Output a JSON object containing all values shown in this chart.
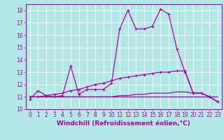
{
  "xlabel": "Windchill (Refroidissement éolien,°C)",
  "background_color": "#b3e8e8",
  "grid_color": "#ffffff",
  "line_color": "#aa00aa",
  "x_values": [
    0,
    1,
    2,
    3,
    4,
    5,
    6,
    7,
    8,
    9,
    10,
    11,
    12,
    13,
    14,
    15,
    16,
    17,
    18,
    19,
    20,
    21,
    22,
    23
  ],
  "series1": [
    10.8,
    11.5,
    11.1,
    11.0,
    11.1,
    13.5,
    11.2,
    11.6,
    11.6,
    11.6,
    12.1,
    16.5,
    18.0,
    16.5,
    16.5,
    16.7,
    18.1,
    17.7,
    14.9,
    13.0,
    11.3,
    11.3,
    11.0,
    10.6
  ],
  "series2": [
    11.0,
    11.0,
    11.0,
    11.0,
    11.0,
    11.0,
    11.0,
    11.0,
    11.0,
    11.0,
    11.0,
    11.0,
    11.0,
    11.0,
    11.0,
    11.0,
    11.0,
    11.0,
    11.0,
    11.0,
    11.0,
    11.0,
    11.0,
    11.0
  ],
  "series3": [
    11.0,
    11.0,
    11.1,
    11.2,
    11.3,
    11.5,
    11.6,
    11.8,
    12.0,
    12.1,
    12.3,
    12.5,
    12.6,
    12.7,
    12.8,
    12.9,
    13.0,
    13.0,
    13.1,
    13.1,
    11.3,
    11.3,
    11.0,
    10.6
  ],
  "series4": [
    11.0,
    11.0,
    11.0,
    11.0,
    11.0,
    11.0,
    11.0,
    11.0,
    11.0,
    11.0,
    11.0,
    11.1,
    11.1,
    11.2,
    11.2,
    11.3,
    11.3,
    11.3,
    11.4,
    11.4,
    11.3,
    11.3,
    11.0,
    10.6
  ],
  "ylim": [
    10.0,
    18.5
  ],
  "xlim": [
    -0.5,
    23.5
  ],
  "yticks": [
    10,
    11,
    12,
    13,
    14,
    15,
    16,
    17,
    18
  ],
  "xticks": [
    0,
    1,
    2,
    3,
    4,
    5,
    6,
    7,
    8,
    9,
    10,
    11,
    12,
    13,
    14,
    15,
    16,
    17,
    18,
    19,
    20,
    21,
    22,
    23
  ],
  "tick_fontsize": 5.5,
  "xlabel_fontsize": 6.5,
  "xlabel_bold": true
}
